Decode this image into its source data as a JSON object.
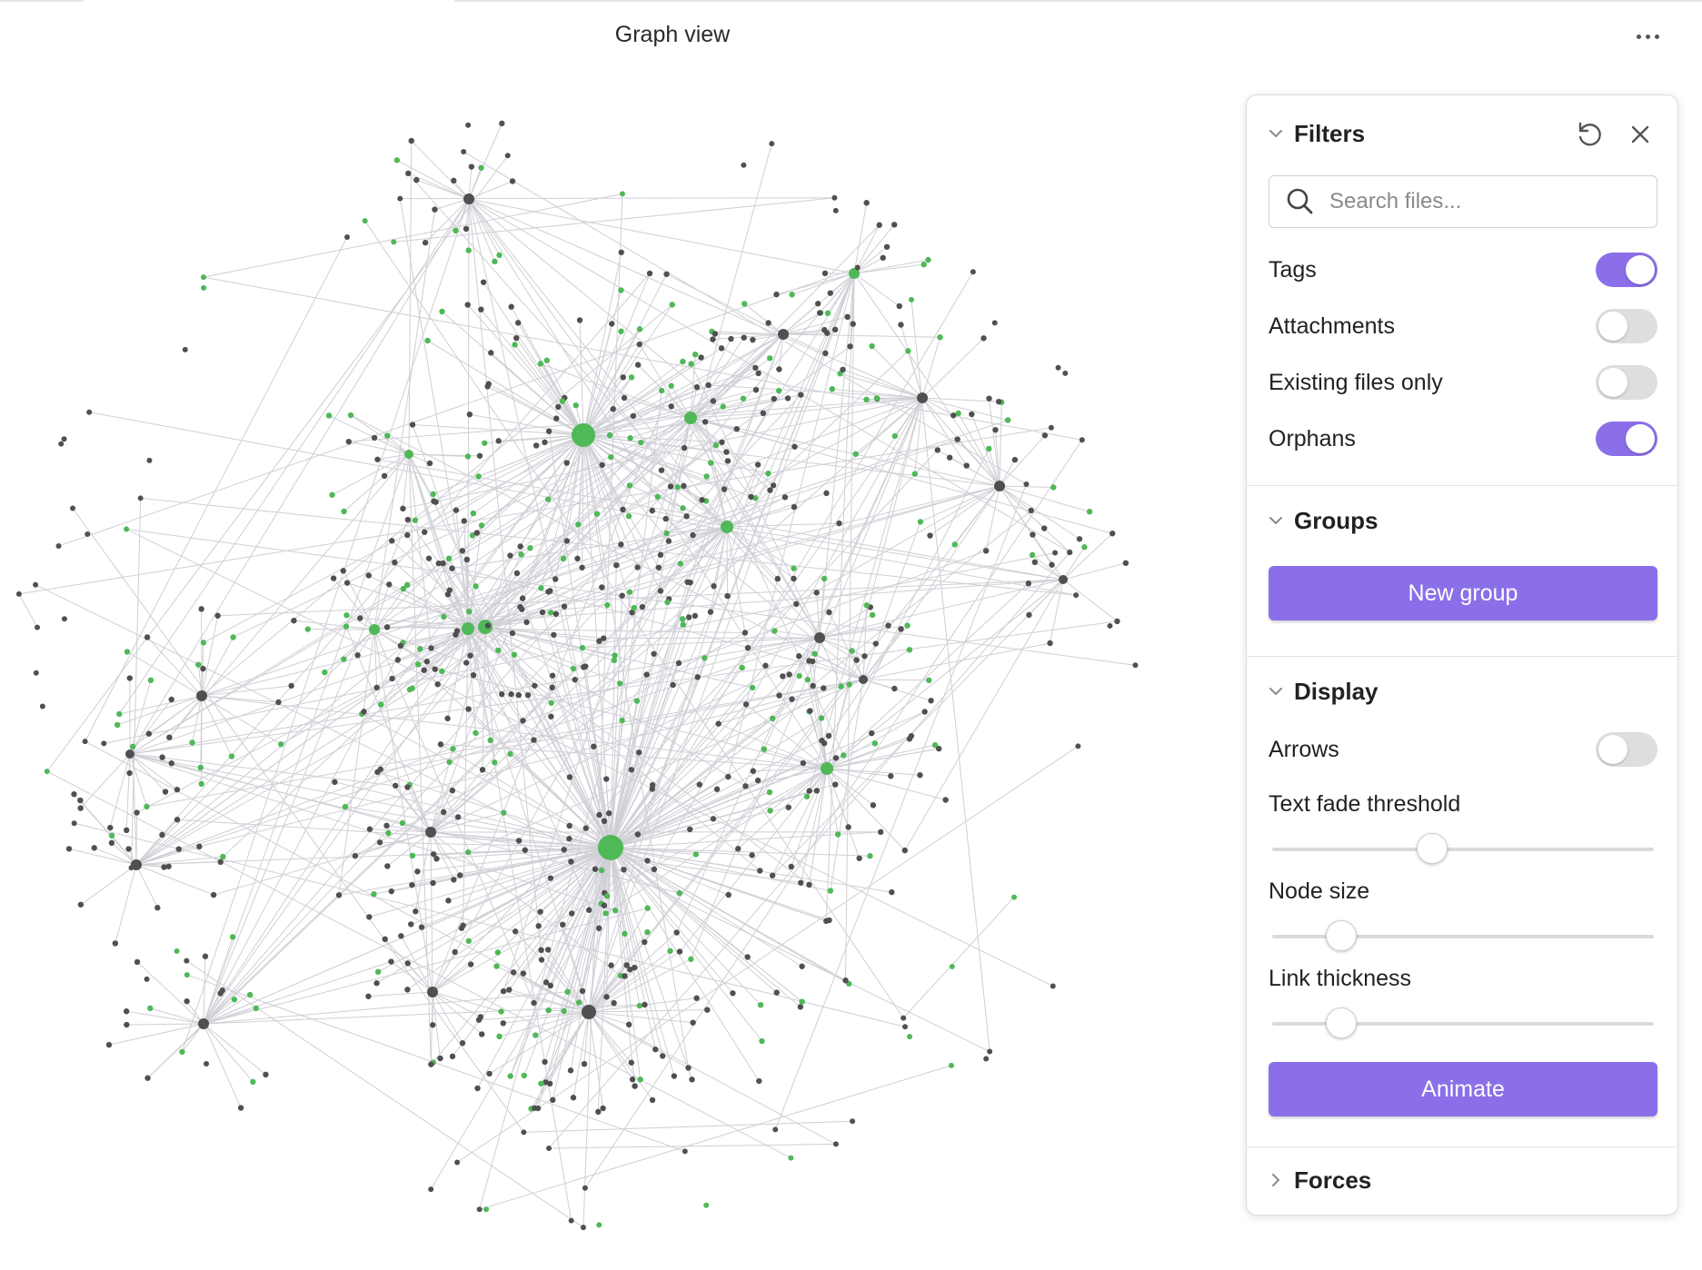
{
  "header": {
    "title": "Graph view"
  },
  "colors": {
    "accent": "#8b6fe8",
    "node_dark": "#505050",
    "node_green": "#4fb857",
    "link": "#cfcfd6"
  },
  "panel": {
    "filters": {
      "title": "Filters",
      "search_placeholder": "Search files...",
      "search_value": "",
      "toggles": [
        {
          "label": "Tags",
          "on": true
        },
        {
          "label": "Attachments",
          "on": false
        },
        {
          "label": "Existing files only",
          "on": false
        },
        {
          "label": "Orphans",
          "on": true
        }
      ]
    },
    "groups": {
      "title": "Groups",
      "new_group_label": "New group"
    },
    "display": {
      "title": "Display",
      "arrows_label": "Arrows",
      "arrows_on": false,
      "sliders": [
        {
          "label": "Text fade threshold",
          "value": 0.42
        },
        {
          "label": "Node size",
          "value": 0.18
        },
        {
          "label": "Link thickness",
          "value": 0.18
        }
      ],
      "animate_label": "Animate"
    },
    "forces": {
      "title": "Forces"
    }
  },
  "icons": {
    "more": "more-horizontal-icon",
    "reset": "reset-icon",
    "close": "close-icon",
    "search": "search-icon",
    "chevron_down": "chevron-down-icon",
    "chevron_right": "chevron-right-icon"
  }
}
